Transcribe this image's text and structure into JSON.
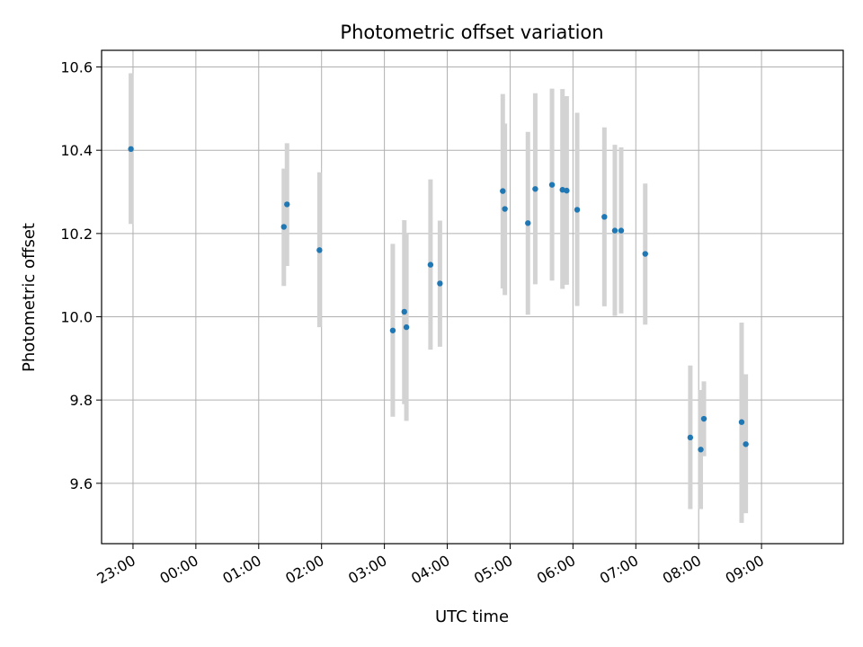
{
  "chart_data": {
    "type": "scatter",
    "title": "Photometric offset variation",
    "xlabel": "UTC time",
    "ylabel": "Photometric offset",
    "grid": true,
    "x_range_hours": [
      -1.5,
      10.3
    ],
    "ylim": [
      9.455,
      10.64
    ],
    "x_ticks": [
      {
        "h": -1,
        "label": "23:00"
      },
      {
        "h": 0,
        "label": "00:00"
      },
      {
        "h": 1,
        "label": "01:00"
      },
      {
        "h": 2,
        "label": "02:00"
      },
      {
        "h": 3,
        "label": "03:00"
      },
      {
        "h": 4,
        "label": "04:00"
      },
      {
        "h": 5,
        "label": "05:00"
      },
      {
        "h": 6,
        "label": "06:00"
      },
      {
        "h": 7,
        "label": "07:00"
      },
      {
        "h": 8,
        "label": "08:00"
      },
      {
        "h": 9,
        "label": "09:00"
      }
    ],
    "y_ticks": [
      {
        "v": 9.6,
        "label": "9.6"
      },
      {
        "v": 9.8,
        "label": "9.8"
      },
      {
        "v": 10.0,
        "label": "10.0"
      },
      {
        "v": 10.2,
        "label": "10.2"
      },
      {
        "v": 10.4,
        "label": "10.4"
      },
      {
        "v": 10.6,
        "label": "10.6"
      }
    ],
    "point_color": "#1f77b4",
    "errorbar_color": "#d3d3d3",
    "points": [
      {
        "t": "22:58",
        "y": 10.403,
        "lo": 10.223,
        "hi": 10.585
      },
      {
        "t": "01:24",
        "y": 10.216,
        "lo": 10.074,
        "hi": 10.356
      },
      {
        "t": "01:27",
        "y": 10.27,
        "lo": 10.122,
        "hi": 10.417
      },
      {
        "t": "01:58",
        "y": 10.16,
        "lo": 9.975,
        "hi": 10.347
      },
      {
        "t": "03:08",
        "y": 9.967,
        "lo": 9.76,
        "hi": 10.175
      },
      {
        "t": "03:19",
        "y": 10.012,
        "lo": 9.79,
        "hi": 10.232
      },
      {
        "t": "03:21",
        "y": 9.975,
        "lo": 9.75,
        "hi": 10.2
      },
      {
        "t": "03:44",
        "y": 10.125,
        "lo": 9.921,
        "hi": 10.33
      },
      {
        "t": "03:53",
        "y": 10.08,
        "lo": 9.928,
        "hi": 10.231
      },
      {
        "t": "04:53",
        "y": 10.302,
        "lo": 10.068,
        "hi": 10.535
      },
      {
        "t": "04:55",
        "y": 10.259,
        "lo": 10.052,
        "hi": 10.464
      },
      {
        "t": "05:17",
        "y": 10.225,
        "lo": 10.005,
        "hi": 10.444
      },
      {
        "t": "05:24",
        "y": 10.307,
        "lo": 10.078,
        "hi": 10.537
      },
      {
        "t": "05:40",
        "y": 10.317,
        "lo": 10.087,
        "hi": 10.548
      },
      {
        "t": "05:50",
        "y": 10.305,
        "lo": 10.067,
        "hi": 10.547
      },
      {
        "t": "05:54",
        "y": 10.303,
        "lo": 10.077,
        "hi": 10.53
      },
      {
        "t": "06:04",
        "y": 10.257,
        "lo": 10.026,
        "hi": 10.49
      },
      {
        "t": "06:30",
        "y": 10.24,
        "lo": 10.025,
        "hi": 10.455
      },
      {
        "t": "06:40",
        "y": 10.207,
        "lo": 10.002,
        "hi": 10.413
      },
      {
        "t": "06:46",
        "y": 10.207,
        "lo": 10.008,
        "hi": 10.407
      },
      {
        "t": "07:09",
        "y": 10.151,
        "lo": 9.981,
        "hi": 10.32
      },
      {
        "t": "07:52",
        "y": 9.71,
        "lo": 9.538,
        "hi": 9.883
      },
      {
        "t": "08:02",
        "y": 9.681,
        "lo": 9.538,
        "hi": 9.824
      },
      {
        "t": "08:05",
        "y": 9.755,
        "lo": 9.665,
        "hi": 9.845
      },
      {
        "t": "08:41",
        "y": 9.747,
        "lo": 9.505,
        "hi": 9.986
      },
      {
        "t": "08:45",
        "y": 9.694,
        "lo": 9.528,
        "hi": 9.862
      }
    ]
  }
}
